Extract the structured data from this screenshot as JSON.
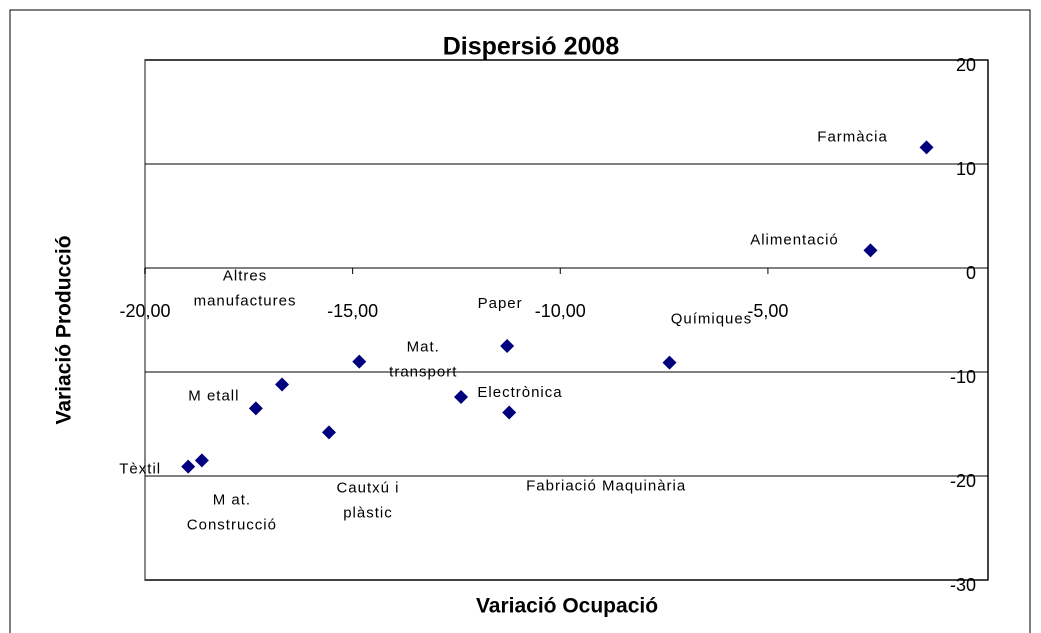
{
  "chart_data": {
    "type": "scatter",
    "title": "Dispersió 2008",
    "x_label": "Variació Ocupació",
    "y_label": "Variació Producció",
    "color": "#00007f",
    "x": [
      -1.18,
      -2.53,
      -7.37,
      -11.28,
      -11.23,
      -12.39,
      -14.84,
      -15.57,
      -16.7,
      -17.33,
      -18.63,
      -18.96
    ],
    "values": [
      11.6,
      1.7,
      -9.1,
      -7.5,
      -13.9,
      -12.4,
      -9.0,
      -15.8,
      -11.2,
      -13.5,
      -18.5,
      -19.1
    ],
    "point_labels": [
      [
        "Farmàcia"
      ],
      [
        "Alimentació"
      ],
      [
        "Químiques"
      ],
      [
        "Paper"
      ],
      [
        "Fabriació Maquinària"
      ],
      [
        "Electrònica"
      ],
      [
        "Mat.",
        "transport"
      ],
      [
        "Cautxú i",
        "plàstic"
      ],
      [
        "Altres",
        "manufactures"
      ],
      [
        "M etall"
      ],
      [
        "M at.",
        "Construcció"
      ],
      [
        "Tèxtil"
      ]
    ],
    "xlim": [
      -20,
      0.3
    ],
    "xticks": [
      {
        "value": -20,
        "label": "-20,00"
      },
      {
        "value": -15,
        "label": "-15,00"
      },
      {
        "value": -10,
        "label": "-10,00"
      },
      {
        "value": -5,
        "label": "-5,00"
      }
    ],
    "ylim": [
      -30,
      20
    ],
    "yticks": [
      -30,
      -20,
      -10,
      0,
      10,
      20
    ],
    "grid": true
  }
}
